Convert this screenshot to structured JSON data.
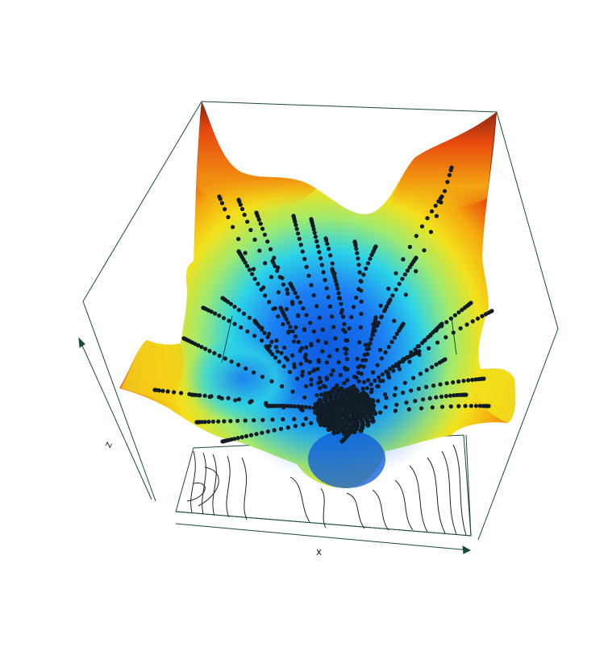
{
  "chart_data": {
    "type": "scatter",
    "subtype": "3d-surface-with-trajectories",
    "title": "",
    "xlabel": "x",
    "zlabel": "z",
    "colormap": [
      "#0a5ee0",
      "#1e8cff",
      "#26d9e6",
      "#9ee86a",
      "#f2df1a",
      "#f5a70f",
      "#e8480f",
      "#8a2416"
    ],
    "point_color": "#111c24",
    "box_color": "#1b4a3c",
    "contour_color": "#222222"
  }
}
